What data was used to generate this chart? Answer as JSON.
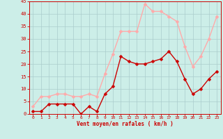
{
  "x": [
    0,
    1,
    2,
    3,
    4,
    5,
    6,
    7,
    8,
    9,
    10,
    11,
    12,
    13,
    14,
    15,
    16,
    17,
    18,
    19,
    20,
    21,
    22,
    23
  ],
  "wind_mean": [
    1,
    1,
    4,
    4,
    4,
    4,
    0,
    3,
    1,
    8,
    11,
    23,
    21,
    20,
    20,
    21,
    22,
    25,
    21,
    14,
    8,
    10,
    14,
    17
  ],
  "wind_gust": [
    3,
    7,
    7,
    8,
    8,
    7,
    7,
    8,
    7,
    16,
    24,
    33,
    33,
    33,
    44,
    41,
    41,
    39,
    37,
    27,
    19,
    23,
    30,
    39
  ],
  "mean_color": "#cc0000",
  "gust_color": "#ffaaaa",
  "bg_color": "#cceee8",
  "grid_color": "#aacccc",
  "axis_color": "#cc0000",
  "xlabel": "Vent moyen/en rafales ( km/h )",
  "ylim": [
    0,
    45
  ],
  "yticks": [
    0,
    5,
    10,
    15,
    20,
    25,
    30,
    35,
    40,
    45
  ],
  "xticks": [
    0,
    1,
    2,
    3,
    4,
    5,
    6,
    7,
    8,
    9,
    10,
    11,
    12,
    13,
    14,
    15,
    16,
    17,
    18,
    19,
    20,
    21,
    22,
    23
  ],
  "markersize": 2.5,
  "linewidth": 1.0
}
